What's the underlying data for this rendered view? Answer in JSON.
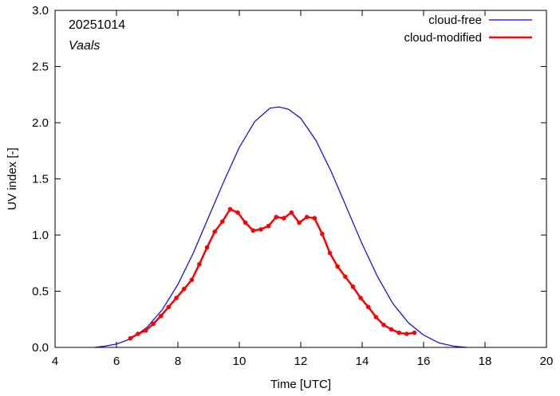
{
  "chart_data": {
    "type": "line",
    "title": "",
    "xlabel": "Time  [UTC]",
    "ylabel": "UV index  [-]",
    "xlim": [
      4,
      20
    ],
    "ylim": [
      0,
      3.0
    ],
    "x_ticks": [
      4,
      6,
      8,
      10,
      12,
      14,
      16,
      18,
      20
    ],
    "x_tick_labels": [
      "4",
      "6",
      "8",
      "10",
      "12",
      "14",
      "16",
      "18",
      "20"
    ],
    "y_ticks": [
      0,
      0.5,
      1.0,
      1.5,
      2.0,
      2.5,
      3.0
    ],
    "y_tick_labels": [
      "0.0",
      "0.5",
      "1.0",
      "1.5",
      "2.0",
      "2.5",
      "3.0"
    ],
    "grid": false,
    "annotations": {
      "date": "20251014",
      "location": "Vaals"
    },
    "legend_position": "top-right",
    "series": [
      {
        "name": "cloud-free",
        "color": "#0000ff",
        "markers": false,
        "points": [
          [
            5.3,
            0.0
          ],
          [
            5.6,
            0.01
          ],
          [
            6.0,
            0.03
          ],
          [
            6.5,
            0.08
          ],
          [
            7.0,
            0.18
          ],
          [
            7.5,
            0.34
          ],
          [
            8.0,
            0.56
          ],
          [
            8.5,
            0.84
          ],
          [
            9.0,
            1.16
          ],
          [
            9.5,
            1.48
          ],
          [
            10.0,
            1.78
          ],
          [
            10.5,
            2.01
          ],
          [
            11.0,
            2.13
          ],
          [
            11.3,
            2.14
          ],
          [
            11.6,
            2.12
          ],
          [
            12.0,
            2.04
          ],
          [
            12.5,
            1.84
          ],
          [
            13.0,
            1.56
          ],
          [
            13.5,
            1.24
          ],
          [
            14.0,
            0.92
          ],
          [
            14.5,
            0.63
          ],
          [
            15.0,
            0.39
          ],
          [
            15.5,
            0.22
          ],
          [
            16.0,
            0.11
          ],
          [
            16.5,
            0.04
          ],
          [
            17.0,
            0.01
          ],
          [
            17.4,
            0.0
          ]
        ]
      },
      {
        "name": "cloud-modified",
        "color": "#ff0000",
        "markers": true,
        "points": [
          [
            6.45,
            0.08
          ],
          [
            6.7,
            0.12
          ],
          [
            6.95,
            0.15
          ],
          [
            7.2,
            0.21
          ],
          [
            7.45,
            0.28
          ],
          [
            7.7,
            0.36
          ],
          [
            7.95,
            0.44
          ],
          [
            8.2,
            0.52
          ],
          [
            8.45,
            0.6
          ],
          [
            8.7,
            0.74
          ],
          [
            8.95,
            0.89
          ],
          [
            9.2,
            1.03
          ],
          [
            9.45,
            1.12
          ],
          [
            9.7,
            1.23
          ],
          [
            9.95,
            1.2
          ],
          [
            10.2,
            1.11
          ],
          [
            10.45,
            1.04
          ],
          [
            10.7,
            1.05
          ],
          [
            10.95,
            1.08
          ],
          [
            11.2,
            1.16
          ],
          [
            11.45,
            1.15
          ],
          [
            11.7,
            1.2
          ],
          [
            11.95,
            1.11
          ],
          [
            12.2,
            1.16
          ],
          [
            12.45,
            1.15
          ],
          [
            12.7,
            1.01
          ],
          [
            12.95,
            0.84
          ],
          [
            13.2,
            0.72
          ],
          [
            13.45,
            0.63
          ],
          [
            13.7,
            0.54
          ],
          [
            13.95,
            0.44
          ],
          [
            14.2,
            0.36
          ],
          [
            14.45,
            0.27
          ],
          [
            14.7,
            0.2
          ],
          [
            14.95,
            0.16
          ],
          [
            15.2,
            0.13
          ],
          [
            15.45,
            0.12
          ],
          [
            15.7,
            0.13
          ]
        ]
      }
    ]
  }
}
